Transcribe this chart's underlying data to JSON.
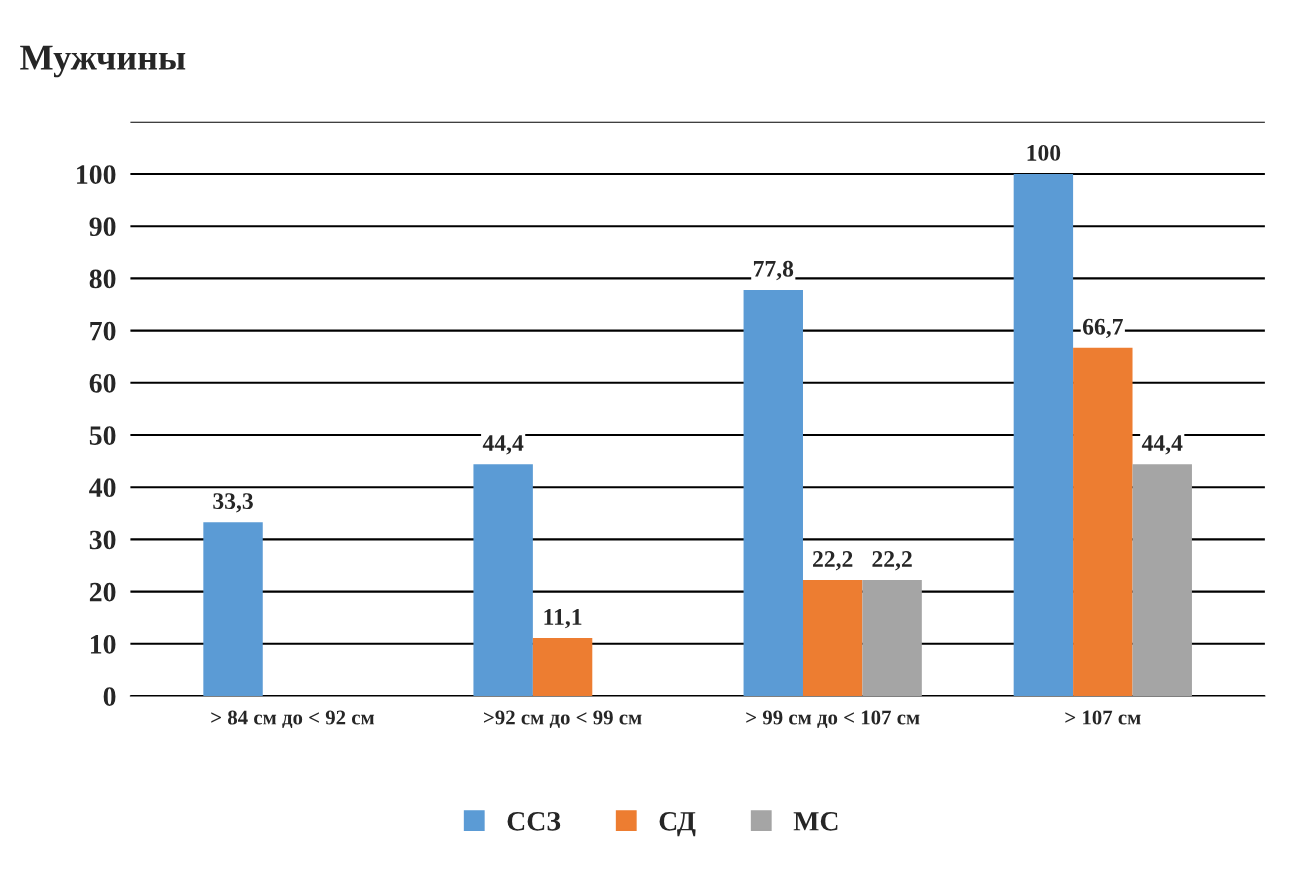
{
  "chart_data": {
    "type": "bar",
    "title": "Мужчины",
    "categories": [
      "> 84 см до < 92 см",
      ">92 см до < 99 см",
      "> 99 см до < 107 см",
      "> 107 см"
    ],
    "series": [
      {
        "name": "ССЗ",
        "color": "#5b9bd5",
        "values": [
          33.3,
          44.4,
          77.8,
          100
        ],
        "value_labels": [
          "33,3",
          "44,4",
          "77,8",
          "100"
        ]
      },
      {
        "name": "СД",
        "color": "#ed7d31",
        "values": [
          0,
          11.1,
          22.2,
          66.7
        ],
        "value_labels": [
          null,
          "11,1",
          "22,2",
          "66,7"
        ]
      },
      {
        "name": "МС",
        "color": "#a5a5a5",
        "values": [
          0,
          0,
          22.2,
          44.4
        ],
        "value_labels": [
          null,
          null,
          "22,2",
          "44,4"
        ]
      }
    ],
    "ylim": [
      0,
      110
    ],
    "yticks": [
      0,
      10,
      20,
      30,
      40,
      50,
      60,
      70,
      80,
      90,
      100,
      {
        "value": 110,
        "label": null
      }
    ],
    "grid": "y",
    "legend": "bottom"
  }
}
